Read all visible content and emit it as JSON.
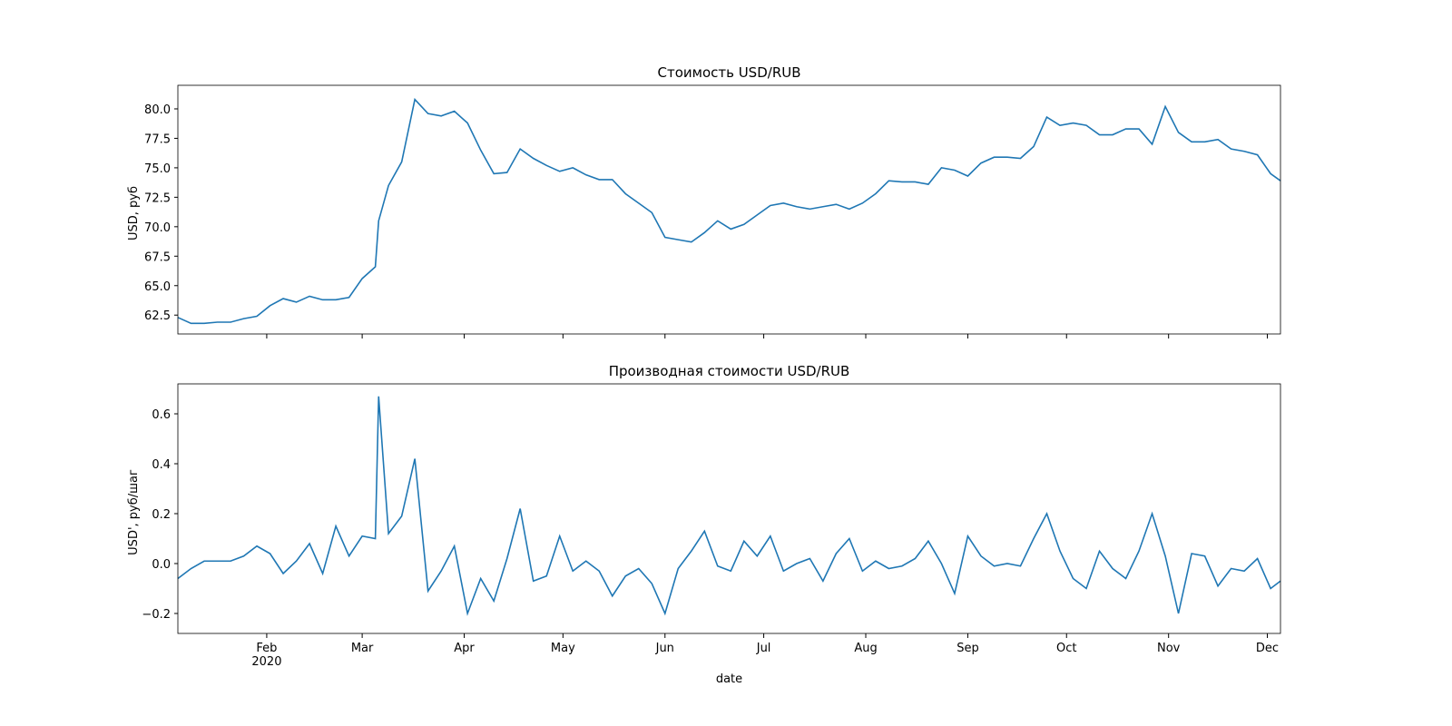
{
  "chart_data": [
    {
      "type": "line",
      "title": "Стоимость USD/RUB",
      "ylabel": "USD, руб",
      "color": "#1f77b4",
      "x": [
        0,
        4,
        8,
        12,
        16,
        20,
        24,
        28,
        32,
        36,
        40,
        44,
        48,
        52,
        56,
        60,
        61,
        64,
        68,
        72,
        76,
        80,
        84,
        88,
        92,
        96,
        100,
        104,
        108,
        112,
        116,
        120,
        124,
        128,
        132,
        136,
        140,
        144,
        148,
        152,
        156,
        160,
        164,
        168,
        172,
        176,
        180,
        184,
        188,
        192,
        196,
        200,
        204,
        208,
        212,
        216,
        220,
        224,
        228,
        232,
        236,
        240,
        244,
        248,
        252,
        256,
        260,
        264,
        268,
        272,
        276,
        280,
        284,
        288,
        292,
        296,
        300,
        304,
        308,
        312,
        316,
        320,
        324,
        328,
        332,
        335
      ],
      "values": [
        62.3,
        61.8,
        61.8,
        61.9,
        61.9,
        62.2,
        62.4,
        63.3,
        63.9,
        63.6,
        64.1,
        63.8,
        63.8,
        64.0,
        65.6,
        66.6,
        70.5,
        73.5,
        75.5,
        80.8,
        79.6,
        79.4,
        79.8,
        78.8,
        76.5,
        74.5,
        74.6,
        76.6,
        75.8,
        75.2,
        74.7,
        75.0,
        74.4,
        74.0,
        74.0,
        72.8,
        72.0,
        71.2,
        69.1,
        68.9,
        68.7,
        69.5,
        70.5,
        69.8,
        70.2,
        71.0,
        71.8,
        72.0,
        71.7,
        71.5,
        71.7,
        71.9,
        71.5,
        72.0,
        72.8,
        73.9,
        73.8,
        73.8,
        73.6,
        75.0,
        74.8,
        74.3,
        75.4,
        75.9,
        75.9,
        75.8,
        76.8,
        79.3,
        78.6,
        78.8,
        78.6,
        77.8,
        77.8,
        78.3,
        78.3,
        77.0,
        80.2,
        78.0,
        77.2,
        77.2,
        77.4,
        76.6,
        76.4,
        76.1,
        74.5,
        73.9
      ],
      "xlim": [
        0,
        335
      ],
      "xticks": [
        27,
        56,
        87,
        117,
        148,
        178,
        209,
        240,
        270,
        301,
        331
      ],
      "ylim": [
        60.9,
        82.0
      ],
      "yticks": [
        62.5,
        {
          "value": 65,
          "label": "65.0"
        },
        67.5,
        {
          "value": 70,
          "label": "70.0"
        },
        72.5,
        {
          "value": 75,
          "label": "75.0"
        },
        77.5,
        {
          "value": 80,
          "label": "80.0"
        }
      ]
    },
    {
      "type": "line",
      "title": "Производная стоимости USD/RUB",
      "ylabel": "USD', руб/шаг",
      "xlabel": "date",
      "color": "#1f77b4",
      "x": [
        0,
        4,
        8,
        12,
        16,
        20,
        24,
        28,
        32,
        36,
        40,
        44,
        48,
        52,
        56,
        60,
        61,
        64,
        68,
        72,
        76,
        80,
        84,
        88,
        92,
        96,
        100,
        104,
        108,
        112,
        116,
        120,
        124,
        128,
        132,
        136,
        140,
        144,
        148,
        152,
        156,
        160,
        164,
        168,
        172,
        176,
        180,
        184,
        188,
        192,
        196,
        200,
        204,
        208,
        212,
        216,
        220,
        224,
        228,
        232,
        236,
        240,
        244,
        248,
        252,
        256,
        260,
        264,
        268,
        272,
        276,
        280,
        284,
        288,
        292,
        296,
        300,
        304,
        308,
        312,
        316,
        320,
        324,
        328,
        332,
        335
      ],
      "values": [
        -0.06,
        -0.02,
        0.01,
        0.01,
        0.01,
        0.03,
        0.07,
        0.04,
        -0.04,
        0.01,
        0.08,
        -0.04,
        0.15,
        0.03,
        0.11,
        0.1,
        0.67,
        0.12,
        0.19,
        0.42,
        -0.11,
        -0.03,
        0.07,
        -0.2,
        -0.06,
        -0.15,
        0.02,
        0.22,
        -0.07,
        -0.05,
        0.11,
        -0.03,
        0.01,
        -0.03,
        -0.13,
        -0.05,
        -0.02,
        -0.08,
        -0.2,
        -0.02,
        0.05,
        0.13,
        -0.01,
        -0.03,
        0.09,
        0.03,
        0.11,
        -0.03,
        0.0,
        0.02,
        -0.07,
        0.04,
        0.1,
        -0.03,
        0.01,
        -0.02,
        -0.01,
        0.02,
        0.09,
        0.0,
        -0.12,
        0.11,
        0.03,
        -0.01,
        0.0,
        -0.01,
        0.1,
        0.2,
        0.05,
        -0.06,
        -0.1,
        0.05,
        -0.02,
        -0.06,
        0.05,
        0.2,
        0.03,
        -0.2,
        0.04,
        0.03,
        -0.09,
        -0.02,
        -0.03,
        0.02,
        -0.1,
        -0.07
      ],
      "xlim": [
        0,
        335
      ],
      "xticks": [
        {
          "value": 27,
          "label": "Feb"
        },
        {
          "value": 56,
          "label": "Mar"
        },
        {
          "value": 87,
          "label": "Apr"
        },
        {
          "value": 117,
          "label": "May"
        },
        {
          "value": 148,
          "label": "Jun"
        },
        {
          "value": 178,
          "label": "Jul"
        },
        {
          "value": 209,
          "label": "Aug"
        },
        {
          "value": 240,
          "label": "Sep"
        },
        {
          "value": 270,
          "label": "Oct"
        },
        {
          "value": 301,
          "label": "Nov"
        },
        {
          "value": 331,
          "label": "Dec"
        }
      ],
      "xtick_year": "2020",
      "ylim": [
        -0.28,
        0.72
      ],
      "yticks": [
        {
          "value": -0.2,
          "label": "−0.2"
        },
        {
          "value": 0,
          "label": "0.0"
        },
        0.2,
        0.4,
        0.6
      ]
    }
  ]
}
